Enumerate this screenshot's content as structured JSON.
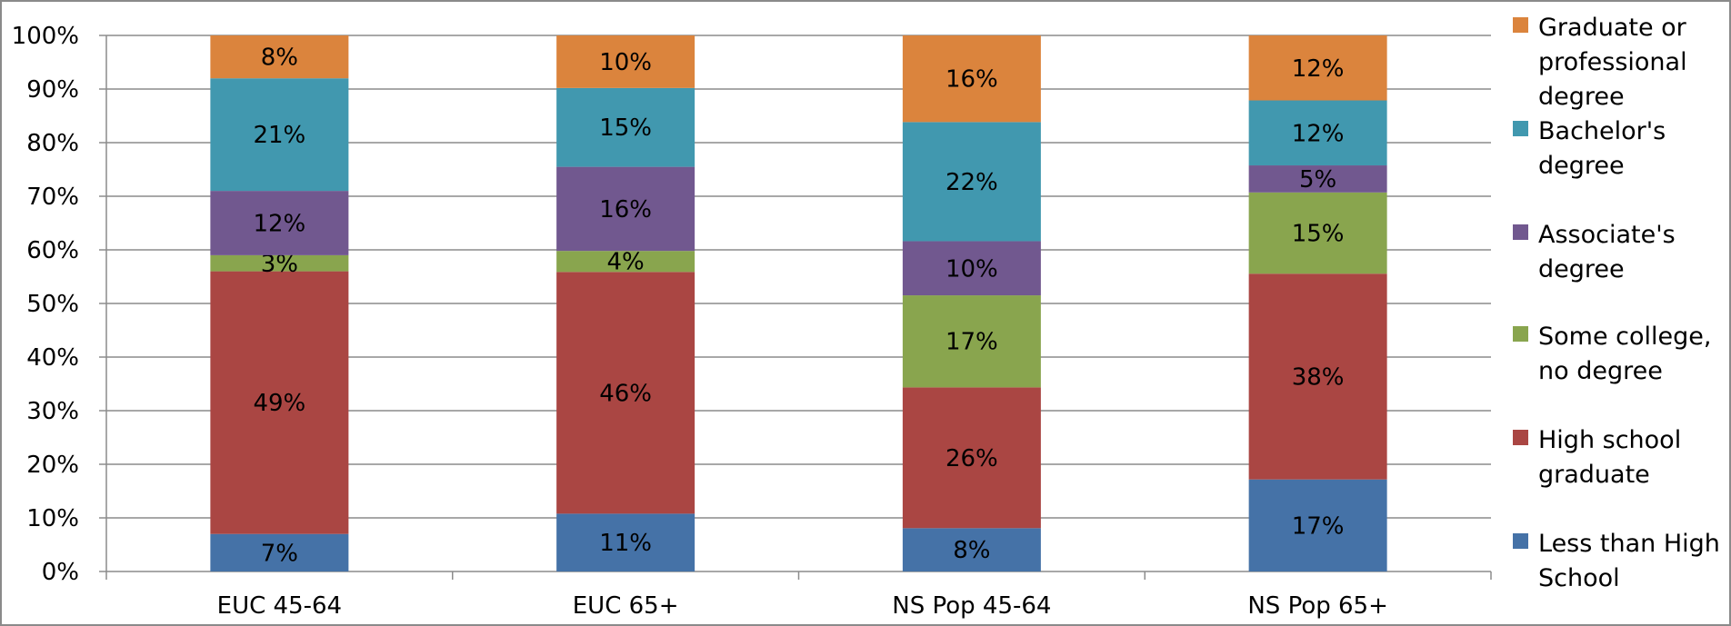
{
  "chart_data": {
    "type": "bar",
    "stacked": true,
    "percent_stacked": true,
    "categories": [
      "EUC 45-64",
      "EUC 65+",
      "NS Pop 45-64",
      "NS Pop 65+"
    ],
    "series": [
      {
        "name": "Less than High School",
        "values": [
          7,
          11,
          8,
          17
        ],
        "labels": [
          "7%",
          "11%",
          "8%",
          "17%"
        ],
        "color": "#4572A7"
      },
      {
        "name": "High school graduate",
        "values": [
          49,
          46,
          26,
          38
        ],
        "labels": [
          "49%",
          "46%",
          "26%",
          "38%"
        ],
        "color": "#AA4643"
      },
      {
        "name": "Some college, no degree",
        "values": [
          3,
          4,
          17,
          15
        ],
        "labels": [
          "3%",
          "4%",
          "17%",
          "15%"
        ],
        "color": "#89A54E"
      },
      {
        "name": "Associate's degree",
        "values": [
          12,
          16,
          10,
          5
        ],
        "labels": [
          "12%",
          "16%",
          "10%",
          "5%"
        ],
        "color": "#71588F"
      },
      {
        "name": "Bachelor's degree",
        "values": [
          21,
          15,
          22,
          12
        ],
        "labels": [
          "21%",
          "15%",
          "22%",
          "12%"
        ],
        "color": "#4198AF"
      },
      {
        "name": "Graduate or professional degree",
        "values": [
          8,
          10,
          16,
          12
        ],
        "labels": [
          "8%",
          "10%",
          "16%",
          "12%"
        ],
        "color": "#DB843D"
      }
    ],
    "y_ticks": [
      "0%",
      "10%",
      "20%",
      "30%",
      "40%",
      "50%",
      "60%",
      "70%",
      "80%",
      "90%",
      "100%"
    ],
    "ylim": [
      0,
      100
    ],
    "grid": true,
    "legend_position": "right",
    "legend_order": [
      5,
      4,
      3,
      2,
      1,
      0
    ],
    "legend_text": [
      [
        "Graduate or",
        "professional",
        "degree"
      ],
      [
        "Bachelor's",
        "degree"
      ],
      [
        "Associate's",
        "degree"
      ],
      [
        "Some college,",
        "no degree"
      ],
      [
        "High school",
        "graduate"
      ],
      [
        "Less than High",
        "School"
      ]
    ],
    "title": "",
    "xlabel": "",
    "ylabel": ""
  }
}
